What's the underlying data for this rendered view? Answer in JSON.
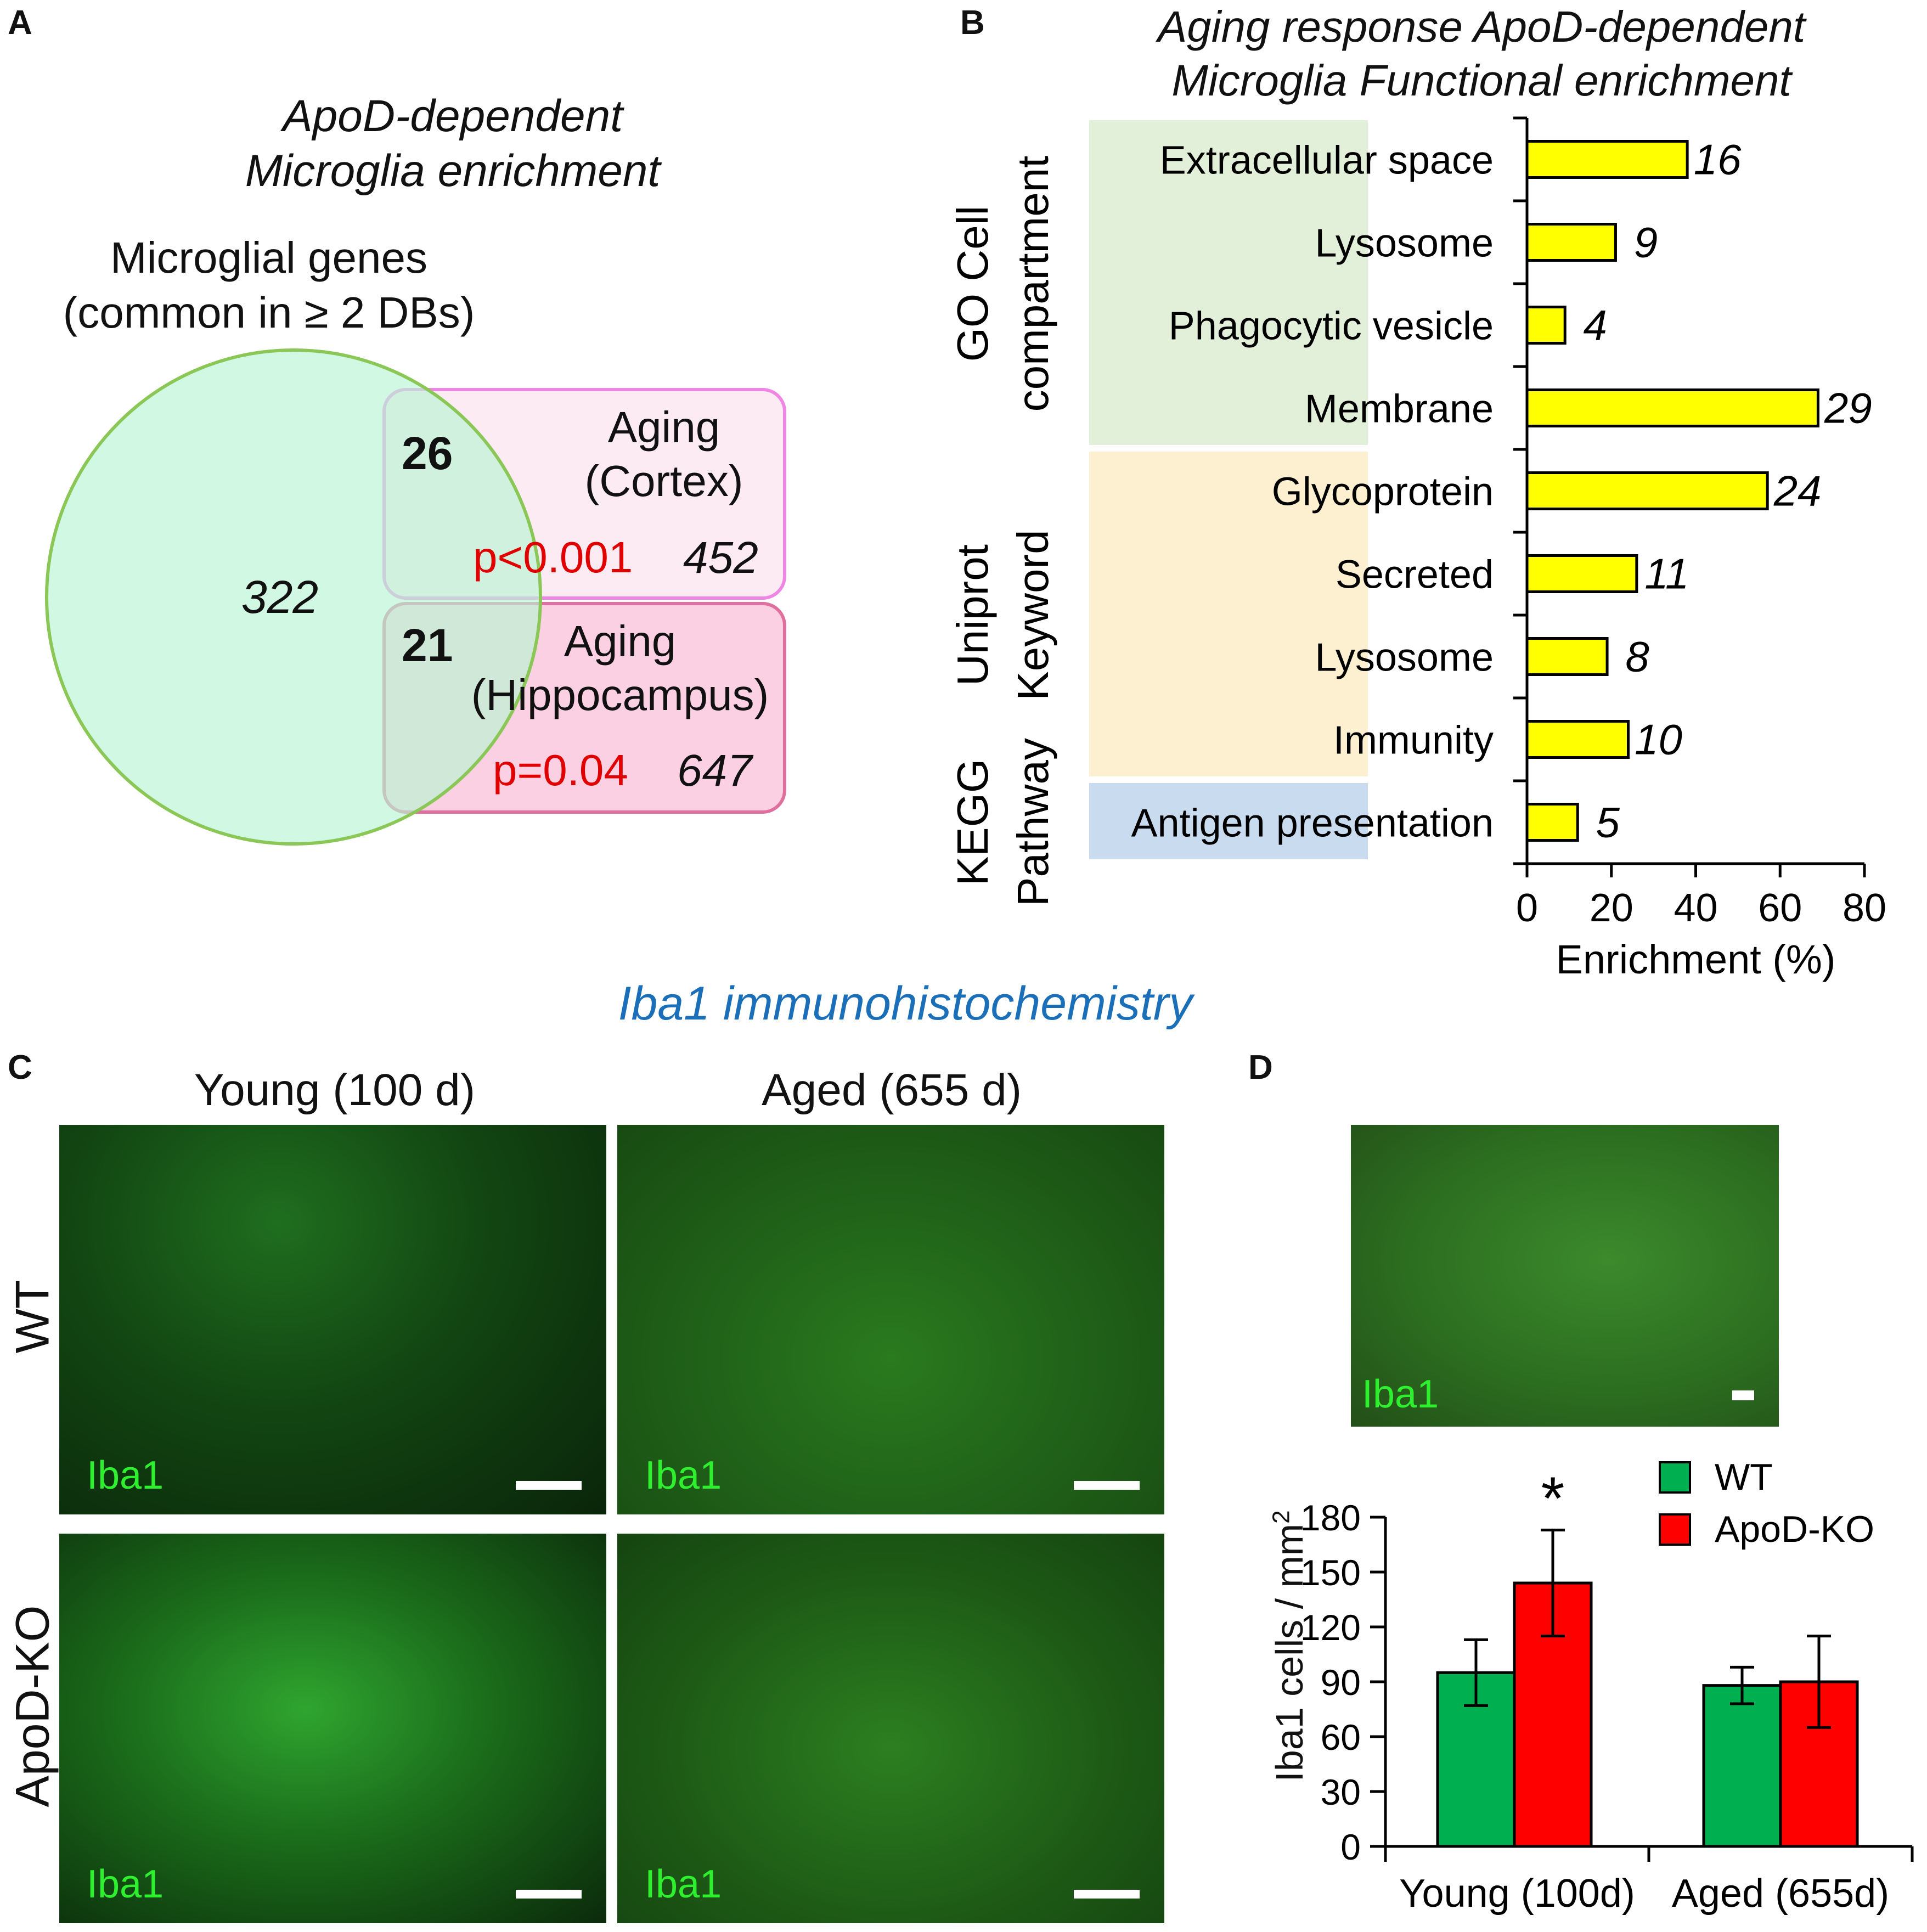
{
  "panelA": {
    "letter": "A",
    "title_line1": "ApoD-dependent",
    "title_line2": "Microglia enrichment",
    "set_label_line1": "Microglial genes",
    "set_label_line2": "(common in ≥ 2 DBs)",
    "microglia_only": "322",
    "cortex": {
      "line1": "Aging",
      "line2": "(Cortex)",
      "overlap": "26",
      "p": "p<0.001",
      "total": "452"
    },
    "hippocampus": {
      "line1": "Aging",
      "line2": "(Hippocampus)",
      "overlap": "21",
      "p": "p=0.04",
      "total": "647"
    }
  },
  "panelB": {
    "letter": "B",
    "title_line1": "Aging response ApoD-dependent",
    "title_line2": "Microglia Functional enrichment",
    "groups": [
      {
        "line1": "GO Cell",
        "line2": "compartment",
        "color": "#e2efd9"
      },
      {
        "line1": "Uniprot",
        "line2": "Keyword",
        "color": "#fdf0d0"
      },
      {
        "line1": "KEGG",
        "line2": "Pathway",
        "color": "#c9dcef"
      }
    ],
    "xlabel": "Enrichment (%)"
  },
  "panelC": {
    "letter": "C",
    "header": "Iba1 immunohistochemistry",
    "col1": "Young (100 d)",
    "col2": "Aged (655 d)",
    "row1": "WT",
    "row2": "ApoD-KO",
    "img_label": "Iba1"
  },
  "panelD": {
    "letter": "D",
    "img_label": "Iba1",
    "ylabel": "Iba1 cells / mm",
    "ylabel_sup": "2",
    "significance": "*"
  },
  "chart_data": [
    {
      "type": "bar",
      "orientation": "horizontal",
      "categories": [
        "Extracellular space",
        "Lysosome",
        "Phagocytic vesicle",
        "Membrane",
        "Glycoprotein",
        "Secreted",
        "Lysosome",
        "Immunity",
        "Antigen presentation"
      ],
      "values": [
        38,
        21,
        9,
        69,
        57,
        26,
        19,
        24,
        12
      ],
      "data_labels": [
        "16",
        "9",
        "4",
        "29",
        "24",
        "11",
        "8",
        "10",
        "5"
      ],
      "xlim": [
        0,
        80
      ],
      "xticks": [
        "0",
        "20",
        "40",
        "60",
        "80"
      ],
      "xlabel": "Enrichment (%)",
      "bar_color": "#ffff00"
    },
    {
      "type": "bar",
      "categories": [
        "Young (100d)",
        "Aged (655d)"
      ],
      "series": [
        {
          "name": "WT",
          "values": [
            95,
            88
          ],
          "errors": [
            18,
            10
          ],
          "color": "#00b050"
        },
        {
          "name": "ApoD-KO",
          "values": [
            144,
            90
          ],
          "errors": [
            29,
            25
          ],
          "color": "#ff0000"
        }
      ],
      "ylim": [
        0,
        180
      ],
      "yticks": [
        "0",
        "30",
        "60",
        "90",
        "120",
        "150",
        "180"
      ],
      "ylabel": "Iba1 cells / mm2",
      "legend": "top-right"
    }
  ]
}
